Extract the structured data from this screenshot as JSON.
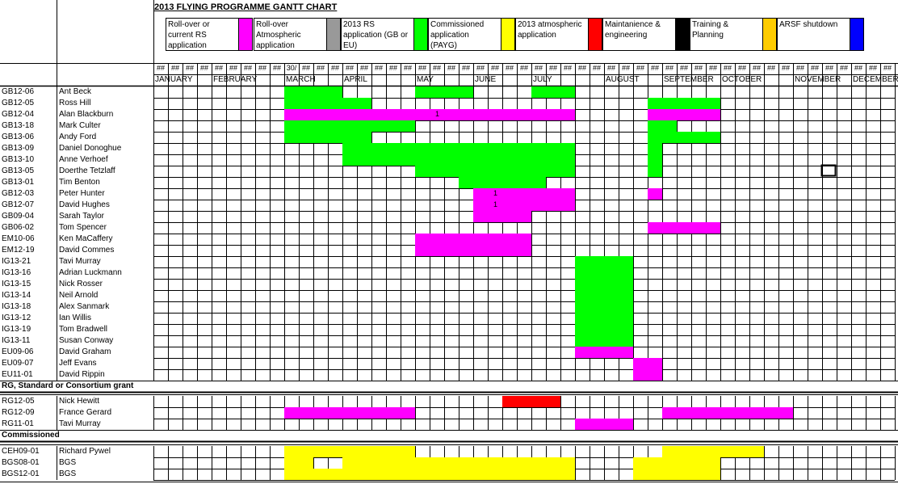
{
  "title": "2013 FLYING PROGRAMME GANTT CHART",
  "legend": [
    {
      "label": "Roll-over or current RS application",
      "color": "#ff00ff"
    },
    {
      "label": "Roll-over Atmospheric application",
      "color": "#999999"
    },
    {
      "label": "2013 RS application (GB or EU)",
      "color": "#00ff00"
    },
    {
      "label": "Commissioned application (PAYG)",
      "color": "#ffff00"
    },
    {
      "label": "2013 atmospheric application",
      "color": "#ff0000"
    },
    {
      "label": "Maintanience & engineering",
      "color": "#000000"
    },
    {
      "label": "Training & Planning",
      "color": "#ffcc00"
    },
    {
      "label": "ARSF shutdown",
      "color": "#0000ff"
    }
  ],
  "week_headers": [
    "##",
    "##",
    "##",
    "##",
    "##",
    "##",
    "##",
    "##",
    "##",
    "30/",
    "##",
    "##",
    "##",
    "##",
    "##",
    "##",
    "##",
    "##",
    "##",
    "##",
    "##",
    "##",
    "##",
    "##",
    "##",
    "##",
    "##",
    "##",
    "##",
    "##",
    "##",
    "##",
    "##",
    "##",
    "##",
    "##",
    "##",
    "##",
    "##",
    "##",
    "##",
    "##",
    "##",
    "##",
    "##",
    "##",
    "##",
    "##",
    "##",
    "##",
    "##",
    "##",
    "##"
  ],
  "months": [
    "JANUARY",
    "FEBRUARY",
    "MARCH",
    "APRIL",
    "MAY",
    "JUNE",
    "JULY",
    "AUGUST",
    "SEPTEMBER",
    "OCTOBER",
    "NOVEMBER",
    "DECEMBER"
  ],
  "rows": [
    {
      "code": "GB12-06",
      "name": "Ant Beck",
      "bars": [
        {
          "s": 9,
          "e": 13,
          "c": "#00ff00"
        },
        {
          "s": 18,
          "e": 22,
          "c": "#00ff00"
        },
        {
          "s": 26,
          "e": 29,
          "c": "#00ff00"
        }
      ]
    },
    {
      "code": "GB12-05",
      "name": "Ross Hill",
      "bars": [
        {
          "s": 9,
          "e": 15,
          "c": "#00ff00"
        },
        {
          "s": 34,
          "e": 39,
          "c": "#00ff00"
        }
      ]
    },
    {
      "code": "GB12-04",
      "name": "Alan Blackburn",
      "mark": {
        "col": 19,
        "text": "1"
      },
      "bars": [
        {
          "s": 9,
          "e": 29,
          "c": "#ff00ff"
        },
        {
          "s": 34,
          "e": 39,
          "c": "#ff00ff"
        }
      ]
    },
    {
      "code": "GB13-18",
      "name": "Mark Culter",
      "bars": [
        {
          "s": 9,
          "e": 18,
          "c": "#00ff00"
        },
        {
          "s": 34,
          "e": 36,
          "c": "#00ff00"
        }
      ]
    },
    {
      "code": "GB13-06",
      "name": "Andy Ford",
      "bars": [
        {
          "s": 9,
          "e": 15,
          "c": "#00ff00"
        },
        {
          "s": 34,
          "e": 39,
          "c": "#00ff00"
        }
      ]
    },
    {
      "code": "GB13-09",
      "name": "Daniel Donoghue",
      "bars": [
        {
          "s": 13,
          "e": 29,
          "c": "#00ff00"
        },
        {
          "s": 34,
          "e": 35,
          "c": "#00ff00"
        }
      ]
    },
    {
      "code": "GB13-10",
      "name": "Anne Verhoef",
      "bars": [
        {
          "s": 13,
          "e": 29,
          "c": "#00ff00"
        },
        {
          "s": 34,
          "e": 35,
          "c": "#00ff00"
        }
      ]
    },
    {
      "code": "GB13-05",
      "name": "Doerthe Tetzlaff",
      "bars": [
        {
          "s": 18,
          "e": 29,
          "c": "#00ff00"
        },
        {
          "s": 34,
          "e": 35,
          "c": "#00ff00"
        }
      ]
    },
    {
      "code": "GB13-01",
      "name": "Tim Benton",
      "bars": [
        {
          "s": 21,
          "e": 27,
          "c": "#00ff00"
        }
      ]
    },
    {
      "code": "GB12-03",
      "name": "Peter Hunter",
      "mark": {
        "col": 23,
        "text": "1"
      },
      "bars": [
        {
          "s": 22,
          "e": 29,
          "c": "#ff00ff"
        },
        {
          "s": 34,
          "e": 35,
          "c": "#ff00ff"
        }
      ]
    },
    {
      "code": "GB12-07",
      "name": "David Hughes",
      "mark": {
        "col": 23,
        "text": "1"
      },
      "bars": [
        {
          "s": 22,
          "e": 29,
          "c": "#ff00ff"
        }
      ]
    },
    {
      "code": "GB09-04",
      "name": "Sarah Taylor",
      "bars": [
        {
          "s": 22,
          "e": 26,
          "c": "#ff00ff"
        }
      ]
    },
    {
      "code": "GB06-02",
      "name": "Tom Spencer",
      "bars": [
        {
          "s": 34,
          "e": 39,
          "c": "#ff00ff"
        }
      ]
    },
    {
      "code": "EM10-06",
      "name": "Ken MaCaffery",
      "bars": [
        {
          "s": 18,
          "e": 26,
          "c": "#ff00ff"
        }
      ]
    },
    {
      "code": "EM12-19",
      "name": "David Commes",
      "bars": [
        {
          "s": 18,
          "e": 26,
          "c": "#ff00ff"
        }
      ]
    },
    {
      "code": "IG13-21",
      "name": "Tavi Murray",
      "bars": [
        {
          "s": 29,
          "e": 33,
          "c": "#00ff00"
        }
      ]
    },
    {
      "code": "IG13-16",
      "name": "Adrian Luckmann",
      "bars": [
        {
          "s": 29,
          "e": 33,
          "c": "#00ff00"
        }
      ]
    },
    {
      "code": "IG13-15",
      "name": "Nick Rosser",
      "bars": [
        {
          "s": 29,
          "e": 33,
          "c": "#00ff00"
        }
      ]
    },
    {
      "code": "IG13-14",
      "name": "Neil Arnold",
      "bars": [
        {
          "s": 29,
          "e": 33,
          "c": "#00ff00"
        }
      ]
    },
    {
      "code": "IG13-18",
      "name": "Alex Sanmark",
      "bars": [
        {
          "s": 29,
          "e": 33,
          "c": "#00ff00"
        }
      ]
    },
    {
      "code": "IG13-12",
      "name": "Ian Willis",
      "bars": [
        {
          "s": 29,
          "e": 33,
          "c": "#00ff00"
        }
      ]
    },
    {
      "code": "IG13-19",
      "name": "Tom Bradwell",
      "bars": [
        {
          "s": 29,
          "e": 33,
          "c": "#00ff00"
        }
      ]
    },
    {
      "code": "IG13-11",
      "name": "Susan Conway",
      "bars": [
        {
          "s": 29,
          "e": 33,
          "c": "#00ff00"
        }
      ]
    },
    {
      "code": "EU09-06",
      "name": "David Graham",
      "bars": [
        {
          "s": 29,
          "e": 33,
          "c": "#ff00ff"
        }
      ]
    },
    {
      "code": "EU09-07",
      "name": "Jeff Evans",
      "bars": [
        {
          "s": 33,
          "e": 35,
          "c": "#ff00ff"
        }
      ]
    },
    {
      "code": "EU11-01",
      "name": "David Rippin",
      "bars": [
        {
          "s": 33,
          "e": 35,
          "c": "#ff00ff"
        }
      ]
    }
  ],
  "section_rg": "RG, Standard or Consortium grant",
  "rg_rows": [
    {
      "code": "RG12-05",
      "name": "Nick Hewitt",
      "bars": [
        {
          "s": 24,
          "e": 28,
          "c": "#ff0000"
        }
      ]
    },
    {
      "code": "RG12-09",
      "name": "France Gerard",
      "bars": [
        {
          "s": 9,
          "e": 18,
          "c": "#ff00ff"
        },
        {
          "s": 35,
          "e": 44,
          "c": "#ff00ff"
        }
      ]
    },
    {
      "code": "RG11-01",
      "name": "Tavi Murray",
      "bars": [
        {
          "s": 29,
          "e": 33,
          "c": "#ff00ff"
        }
      ]
    }
  ],
  "section_comm": "Commissioned",
  "comm_rows": [
    {
      "code": "CEH09-01",
      "name": "Richard Pywel",
      "bars": [
        {
          "s": 9,
          "e": 18,
          "c": "#ffff00"
        },
        {
          "s": 35,
          "e": 42,
          "c": "#ffff00"
        }
      ]
    },
    {
      "code": "BGS08-01",
      "name": "BGS",
      "bars": [
        {
          "s": 9,
          "e": 11,
          "c": "#ffff00"
        },
        {
          "s": 13,
          "e": 29,
          "c": "#ffff00"
        },
        {
          "s": 33,
          "e": 39,
          "c": "#ffff00"
        }
      ]
    },
    {
      "code": "BGS12-01",
      "name": "BGS",
      "bars": [
        {
          "s": 9,
          "e": 29,
          "c": "#ffff00"
        },
        {
          "s": 33,
          "e": 39,
          "c": "#ffff00"
        }
      ]
    }
  ]
}
